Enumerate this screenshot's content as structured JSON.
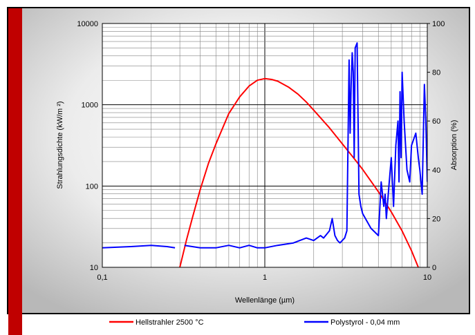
{
  "chart_data": {
    "type": "line",
    "title": "",
    "x_scale": "log",
    "y_scale": "log",
    "y2_scale": "linear",
    "xlim": [
      0.1,
      10
    ],
    "ylim": [
      10,
      10000
    ],
    "y2lim": [
      0,
      100
    ],
    "xlabel": "Wellenlänge (µm)",
    "ylabel": "Strahlungsdichte (kW/m ²)",
    "y2label": "Absorption (%)",
    "x_ticks": [
      "0,1",
      "1",
      "10"
    ],
    "y_ticks": [
      "10",
      "100",
      "1000",
      "10000"
    ],
    "y2_ticks": [
      "0",
      "20",
      "40",
      "60",
      "80",
      "100"
    ],
    "grid": true,
    "legend_position": "bottom",
    "colors": {
      "frame_bg": "#d4d4d4",
      "plot_bg": "#ffffff",
      "left_bar": "#c00000",
      "series1": "#ff0000",
      "series2": "#0000ff"
    },
    "series": [
      {
        "name": "Hellstrahler 2500 °C",
        "axis": "left",
        "color": "#ff0000",
        "x": [
          0.3,
          0.33,
          0.36,
          0.4,
          0.45,
          0.5,
          0.6,
          0.7,
          0.8,
          0.9,
          1.0,
          1.1,
          1.2,
          1.4,
          1.6,
          1.8,
          2.0,
          2.5,
          3.0,
          3.5,
          4.0,
          5.0,
          6.0,
          7.0,
          8.0,
          8.8
        ],
        "y": [
          10,
          22,
          42,
          90,
          190,
          330,
          780,
          1250,
          1700,
          2000,
          2100,
          2050,
          1950,
          1650,
          1350,
          1080,
          860,
          520,
          330,
          225,
          160,
          85,
          48,
          28,
          16,
          10
        ]
      },
      {
        "name": "Polystyrol - 0,04 mm",
        "axis": "right",
        "color": "#0000ff",
        "segments": [
          {
            "x": [
              0.1,
              0.15,
              0.2,
              0.25,
              0.28
            ],
            "y": [
              8,
              8.5,
              9,
              8.5,
              8
            ]
          },
          {
            "x": [
              0.32,
              0.4,
              0.5,
              0.6,
              0.7,
              0.8,
              0.9,
              1.0,
              1.2,
              1.5,
              1.8,
              2.0,
              2.2,
              2.3,
              2.5,
              2.6,
              2.7,
              2.8,
              2.9,
              3.1,
              3.2,
              3.3,
              3.35,
              3.4,
              3.45,
              3.5,
              3.55,
              3.6,
              3.7,
              3.8,
              3.9,
              4.0,
              4.5,
              5.0,
              5.2,
              5.4,
              5.5,
              5.6,
              5.8,
              6.0,
              6.2,
              6.4,
              6.6,
              6.7,
              6.8,
              6.9,
              7.0,
              7.2,
              7.5,
              7.8,
              8.0,
              8.5,
              8.8,
              9.0,
              9.3,
              9.6,
              9.8,
              10.0
            ],
            "y": [
              9,
              8,
              8,
              9,
              8,
              9,
              8,
              8,
              9,
              10,
              12,
              11,
              13,
              12,
              15,
              20,
              13,
              11,
              10,
              12,
              15,
              85,
              55,
              75,
              88,
              80,
              45,
              90,
              92,
              30,
              25,
              22,
              16,
              13,
              35,
              25,
              30,
              20,
              33,
              45,
              25,
              50,
              60,
              35,
              72,
              45,
              80,
              60,
              40,
              35,
              50,
              55,
              45,
              40,
              30,
              75,
              60,
              35
            ]
          }
        ]
      }
    ]
  }
}
